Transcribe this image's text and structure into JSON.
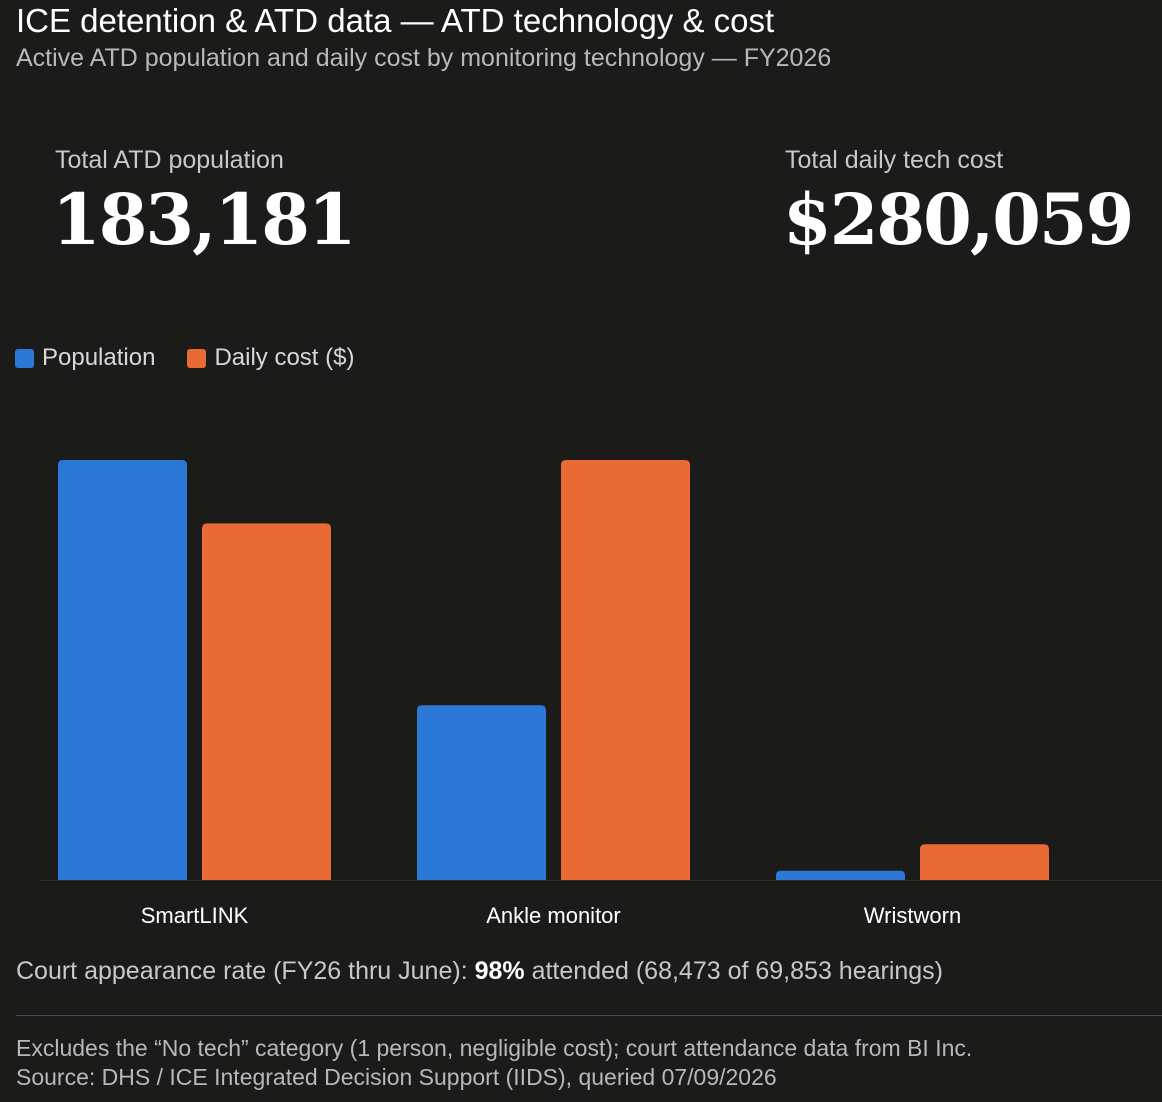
{
  "header": {
    "title": "ICE detention & ATD data — ATD technology & cost",
    "subtitle": "Active ATD population and daily cost by monitoring technology — FY2026"
  },
  "kpis": {
    "population_label": "Total ATD population",
    "population_value": "183,181",
    "cost_label": "Total daily tech cost",
    "cost_value": "$280,059"
  },
  "colors": {
    "population": "#2b78d6",
    "cost": "#ea6a35",
    "background": "#1b1b1a"
  },
  "chart_data": {
    "type": "bar",
    "categories": [
      "SmartLINK",
      "Ankle monitor",
      "Wristworn"
    ],
    "series": [
      {
        "name": "Population",
        "values": [
          100,
          41.6,
          2.2
        ]
      },
      {
        "name": "Daily cost ($)",
        "values": [
          84.9,
          100,
          8.5
        ]
      }
    ],
    "title": "",
    "xlabel": "",
    "ylabel": "",
    "ylim": [
      0,
      100
    ],
    "grid": false,
    "legend": "top-left"
  },
  "notes": {
    "court_prefix": "Court appearance rate (FY26 thru June): ",
    "court_rate": "98%",
    "court_suffix": " attended (68,473 of 69,853 hearings)",
    "exclusion": "Excludes the “No tech” category (1 person, negligible cost); court attendance data from BI Inc.",
    "source": "Source: DHS / ICE Integrated Decision Support (IIDS), queried 07/09/2026"
  }
}
